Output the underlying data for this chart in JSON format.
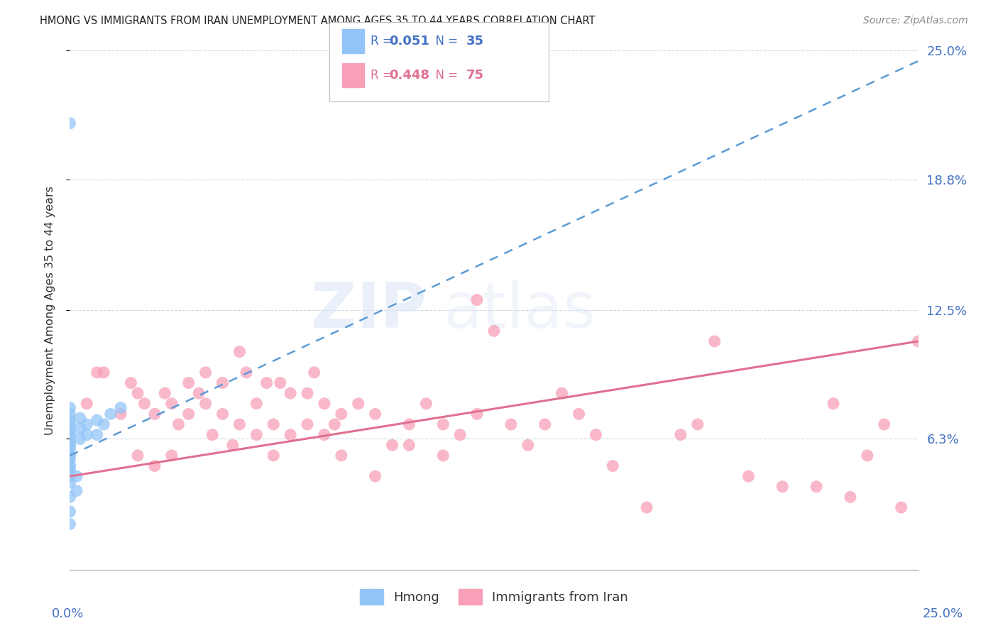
{
  "title": "HMONG VS IMMIGRANTS FROM IRAN UNEMPLOYMENT AMONG AGES 35 TO 44 YEARS CORRELATION CHART",
  "source": "Source: ZipAtlas.com",
  "ylabel": "Unemployment Among Ages 35 to 44 years",
  "xlim": [
    0.0,
    25.0
  ],
  "ylim": [
    0.0,
    25.0
  ],
  "right_yticks": [
    6.3,
    12.5,
    18.8,
    25.0
  ],
  "right_yticklabels": [
    "6.3%",
    "12.5%",
    "18.8%",
    "25.0%"
  ],
  "legend1_label": "R = 0.051   N = 35",
  "legend2_label": "R = 0.448   N = 75",
  "legend_bottom1": "Hmong",
  "legend_bottom2": "Immigrants from Iran",
  "hmong_color": "#92c5f7",
  "iran_color": "#f7a0b8",
  "hmong_line_color": "#5b9bd5",
  "iran_line_color": "#e07090",
  "background_color": "#ffffff",
  "grid_color": "#d0d8e8",
  "hmong_x": [
    0.0,
    0.0,
    0.0,
    0.0,
    0.0,
    0.0,
    0.0,
    0.0,
    0.0,
    0.0,
    0.0,
    0.0,
    0.0,
    0.0,
    0.0,
    0.0,
    0.0,
    0.0,
    0.0,
    0.0,
    0.3,
    0.3,
    0.3,
    0.5,
    0.5,
    0.8,
    0.8,
    1.0,
    1.2,
    1.5,
    0.0,
    0.0,
    0.0,
    0.2,
    0.2
  ],
  "hmong_y": [
    21.5,
    7.5,
    7.2,
    6.8,
    6.5,
    6.2,
    6.0,
    5.8,
    5.5,
    5.3,
    5.0,
    4.8,
    4.5,
    4.2,
    7.8,
    7.0,
    6.5,
    6.0,
    5.5,
    5.0,
    7.3,
    6.8,
    6.3,
    7.0,
    6.5,
    7.2,
    6.5,
    7.0,
    7.5,
    7.8,
    3.5,
    2.8,
    2.2,
    4.5,
    3.8
  ],
  "iran_x": [
    0.5,
    1.0,
    1.5,
    1.8,
    2.0,
    2.0,
    2.2,
    2.5,
    2.5,
    2.8,
    3.0,
    3.0,
    3.2,
    3.5,
    3.5,
    3.8,
    4.0,
    4.0,
    4.2,
    4.5,
    4.5,
    4.8,
    5.0,
    5.0,
    5.2,
    5.5,
    5.5,
    5.8,
    6.0,
    6.0,
    6.2,
    6.5,
    6.5,
    7.0,
    7.0,
    7.2,
    7.5,
    7.5,
    7.8,
    8.0,
    8.0,
    8.5,
    9.0,
    9.0,
    9.5,
    10.0,
    10.0,
    10.5,
    11.0,
    11.0,
    11.5,
    12.0,
    12.0,
    12.5,
    13.0,
    13.5,
    14.0,
    14.5,
    15.0,
    15.5,
    16.0,
    17.0,
    18.0,
    18.5,
    19.0,
    20.0,
    21.0,
    22.0,
    22.5,
    23.0,
    23.5,
    24.0,
    24.5,
    25.0,
    0.8
  ],
  "iran_y": [
    8.0,
    9.5,
    7.5,
    9.0,
    8.5,
    5.5,
    8.0,
    7.5,
    5.0,
    8.5,
    8.0,
    5.5,
    7.0,
    9.0,
    7.5,
    8.5,
    9.5,
    8.0,
    6.5,
    9.0,
    7.5,
    6.0,
    10.5,
    7.0,
    9.5,
    8.0,
    6.5,
    9.0,
    7.0,
    5.5,
    9.0,
    8.5,
    6.5,
    8.5,
    7.0,
    9.5,
    8.0,
    6.5,
    7.0,
    5.5,
    7.5,
    8.0,
    7.5,
    4.5,
    6.0,
    7.0,
    6.0,
    8.0,
    7.0,
    5.5,
    6.5,
    13.0,
    7.5,
    11.5,
    7.0,
    6.0,
    7.0,
    8.5,
    7.5,
    6.5,
    5.0,
    3.0,
    6.5,
    7.0,
    11.0,
    4.5,
    4.0,
    4.0,
    8.0,
    3.5,
    5.5,
    7.0,
    3.0,
    11.0,
    9.5
  ],
  "hmong_trendline_x": [
    0,
    25
  ],
  "hmong_trendline_y": [
    5.5,
    24.5
  ],
  "iran_trendline_x": [
    0,
    25
  ],
  "iran_trendline_y": [
    4.5,
    11.0
  ]
}
